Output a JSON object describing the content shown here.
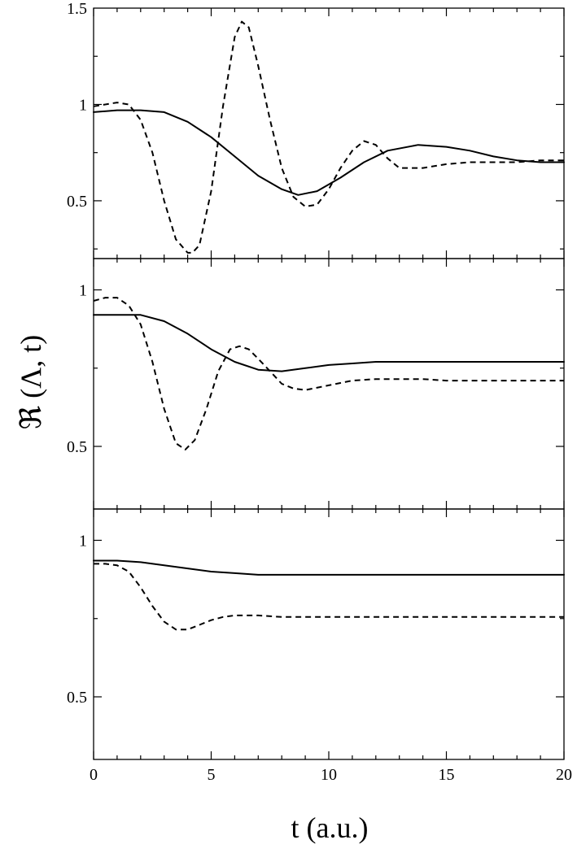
{
  "chart_data": {
    "type": "line",
    "xlabel": "t (a.u.)",
    "ylabel": "ℜ (Λ, t)",
    "xlim": [
      0,
      20
    ],
    "x_ticks": [
      0,
      5,
      10,
      15,
      20
    ],
    "x_tick_labels": [
      "0",
      "5",
      "10",
      "15",
      "20"
    ],
    "grid": false,
    "legend": "none",
    "panels": [
      {
        "ylim": [
          0.2,
          1.5
        ],
        "y_ticks": [
          0.5,
          1,
          1.5
        ],
        "y_tick_labels": [
          "0.5",
          "1",
          "1.5"
        ],
        "series": [
          {
            "style": "solid",
            "x": [
              0,
              1,
              2,
              3,
              4,
              5,
              6,
              7,
              8,
              8.7,
              9.5,
              10.5,
              11.5,
              12.5,
              13.8,
              15,
              16,
              17,
              18,
              19,
              20
            ],
            "y": [
              0.96,
              0.97,
              0.97,
              0.96,
              0.91,
              0.83,
              0.73,
              0.63,
              0.56,
              0.53,
              0.55,
              0.62,
              0.7,
              0.76,
              0.79,
              0.78,
              0.76,
              0.73,
              0.71,
              0.7,
              0.7
            ]
          },
          {
            "style": "dashed",
            "x": [
              0,
              1,
              1.5,
              2,
              2.5,
              3,
              3.5,
              4,
              4.2,
              4.5,
              5,
              5.5,
              6,
              6.3,
              6.6,
              7,
              7.5,
              8,
              8.5,
              9,
              9.5,
              10,
              10.5,
              11,
              11.5,
              12,
              12.5,
              13,
              14,
              15,
              16,
              17,
              18,
              19,
              20
            ],
            "y": [
              0.99,
              1.01,
              1.0,
              0.92,
              0.75,
              0.5,
              0.3,
              0.23,
              0.23,
              0.27,
              0.55,
              0.99,
              1.35,
              1.43,
              1.4,
              1.2,
              0.92,
              0.67,
              0.52,
              0.47,
              0.48,
              0.56,
              0.67,
              0.76,
              0.81,
              0.79,
              0.72,
              0.67,
              0.67,
              0.69,
              0.7,
              0.7,
              0.7,
              0.71,
              0.71
            ]
          }
        ]
      },
      {
        "ylim": [
          0.3,
          1.1
        ],
        "y_ticks": [
          0.5,
          1
        ],
        "y_tick_labels": [
          "0.5",
          "1"
        ],
        "series": [
          {
            "style": "solid",
            "x": [
              0,
              1,
              2,
              3,
              4,
              5,
              6,
              7,
              8,
              9,
              10,
              11,
              12,
              13,
              14,
              15,
              16,
              17,
              18,
              19,
              20
            ],
            "y": [
              0.92,
              0.92,
              0.92,
              0.9,
              0.86,
              0.81,
              0.77,
              0.745,
              0.74,
              0.75,
              0.76,
              0.765,
              0.77,
              0.77,
              0.77,
              0.77,
              0.77,
              0.77,
              0.77,
              0.77,
              0.77
            ]
          },
          {
            "style": "dashed",
            "x": [
              0,
              0.5,
              1,
              1.5,
              2,
              2.5,
              3,
              3.5,
              3.9,
              4.3,
              4.8,
              5.3,
              5.8,
              6.2,
              6.6,
              7,
              7.5,
              8,
              8.5,
              9,
              10,
              11,
              12,
              13,
              14,
              15,
              16,
              17,
              18,
              19,
              20
            ],
            "y": [
              0.965,
              0.975,
              0.975,
              0.95,
              0.89,
              0.77,
              0.62,
              0.51,
              0.49,
              0.52,
              0.62,
              0.74,
              0.81,
              0.82,
              0.81,
              0.78,
              0.74,
              0.7,
              0.685,
              0.68,
              0.695,
              0.71,
              0.715,
              0.715,
              0.715,
              0.71,
              0.71,
              0.71,
              0.71,
              0.71,
              0.71
            ]
          }
        ]
      },
      {
        "ylim": [
          0.3,
          1.1
        ],
        "y_ticks": [
          0.5,
          1
        ],
        "y_tick_labels": [
          "0.5",
          "1"
        ],
        "series": [
          {
            "style": "solid",
            "x": [
              0,
              1,
              2,
              3,
              4,
              5,
              6,
              7,
              8,
              10,
              12,
              14,
              16,
              18,
              20
            ],
            "y": [
              0.935,
              0.935,
              0.93,
              0.92,
              0.91,
              0.9,
              0.895,
              0.89,
              0.89,
              0.89,
              0.89,
              0.89,
              0.89,
              0.89,
              0.89
            ]
          },
          {
            "style": "dashed",
            "x": [
              0,
              0.5,
              1,
              1.5,
              2,
              2.5,
              3,
              3.5,
              4,
              4.5,
              5,
              5.5,
              6,
              7,
              8,
              10,
              12,
              14,
              16,
              18,
              20
            ],
            "y": [
              0.925,
              0.925,
              0.92,
              0.9,
              0.85,
              0.79,
              0.74,
              0.715,
              0.715,
              0.73,
              0.745,
              0.755,
              0.76,
              0.76,
              0.755,
              0.755,
              0.755,
              0.755,
              0.755,
              0.755,
              0.755
            ]
          }
        ]
      }
    ]
  }
}
